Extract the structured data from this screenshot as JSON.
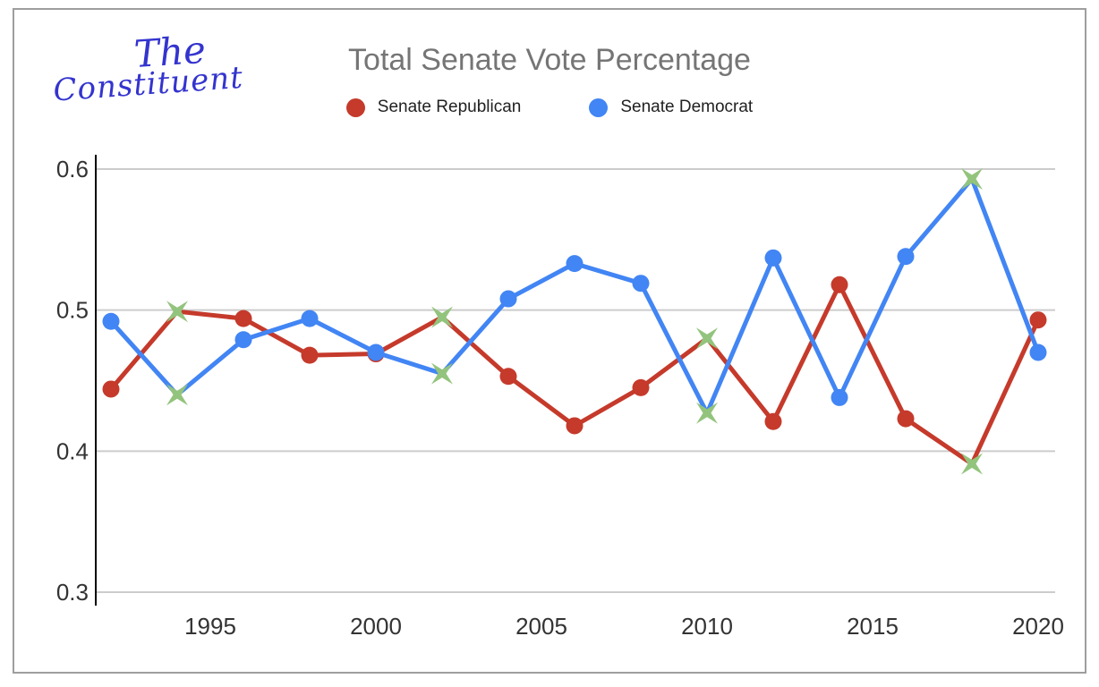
{
  "logo": {
    "line1": "The",
    "line2": "Constituent"
  },
  "chart_data": {
    "type": "line",
    "title": "Total Senate Vote Percentage",
    "x": [
      1992,
      1994,
      1996,
      1998,
      2000,
      2002,
      2004,
      2006,
      2008,
      2010,
      2012,
      2014,
      2016,
      2018,
      2020
    ],
    "series": [
      {
        "name": "Senate Republican",
        "color": "#c53a2b",
        "values": [
          0.444,
          0.499,
          0.494,
          0.468,
          0.469,
          0.495,
          0.453,
          0.418,
          0.445,
          0.48,
          0.421,
          0.518,
          0.423,
          0.391,
          0.493
        ]
      },
      {
        "name": "Senate Democrat",
        "color": "#4285f4",
        "values": [
          0.492,
          0.44,
          0.479,
          0.494,
          0.47,
          0.455,
          0.508,
          0.533,
          0.519,
          0.427,
          0.537,
          0.438,
          0.538,
          0.593,
          0.47
        ]
      }
    ],
    "special_marker_years": [
      1994,
      2002,
      2010,
      2018
    ],
    "special_marker_color": "#93c47d",
    "xlim": [
      1992,
      2020
    ],
    "ylim": [
      0.3,
      0.6
    ],
    "xticks": [
      "1995",
      "2000",
      "2005",
      "2010",
      "2015",
      "2020"
    ],
    "xtick_years": [
      1995,
      2000,
      2005,
      2010,
      2015,
      2020
    ],
    "yticks": [
      "0.3",
      "0.4",
      "0.5",
      "0.6"
    ],
    "ytick_values": [
      0.3,
      0.4,
      0.5,
      0.6
    ],
    "grid": "horizontal",
    "legend_position": "top"
  },
  "colors": {
    "grid": "#cccccc",
    "axis": "#000000",
    "title": "#757575",
    "tick_label": "#333333",
    "frame_border": "#9e9e9e",
    "logo": "#3434cf"
  }
}
